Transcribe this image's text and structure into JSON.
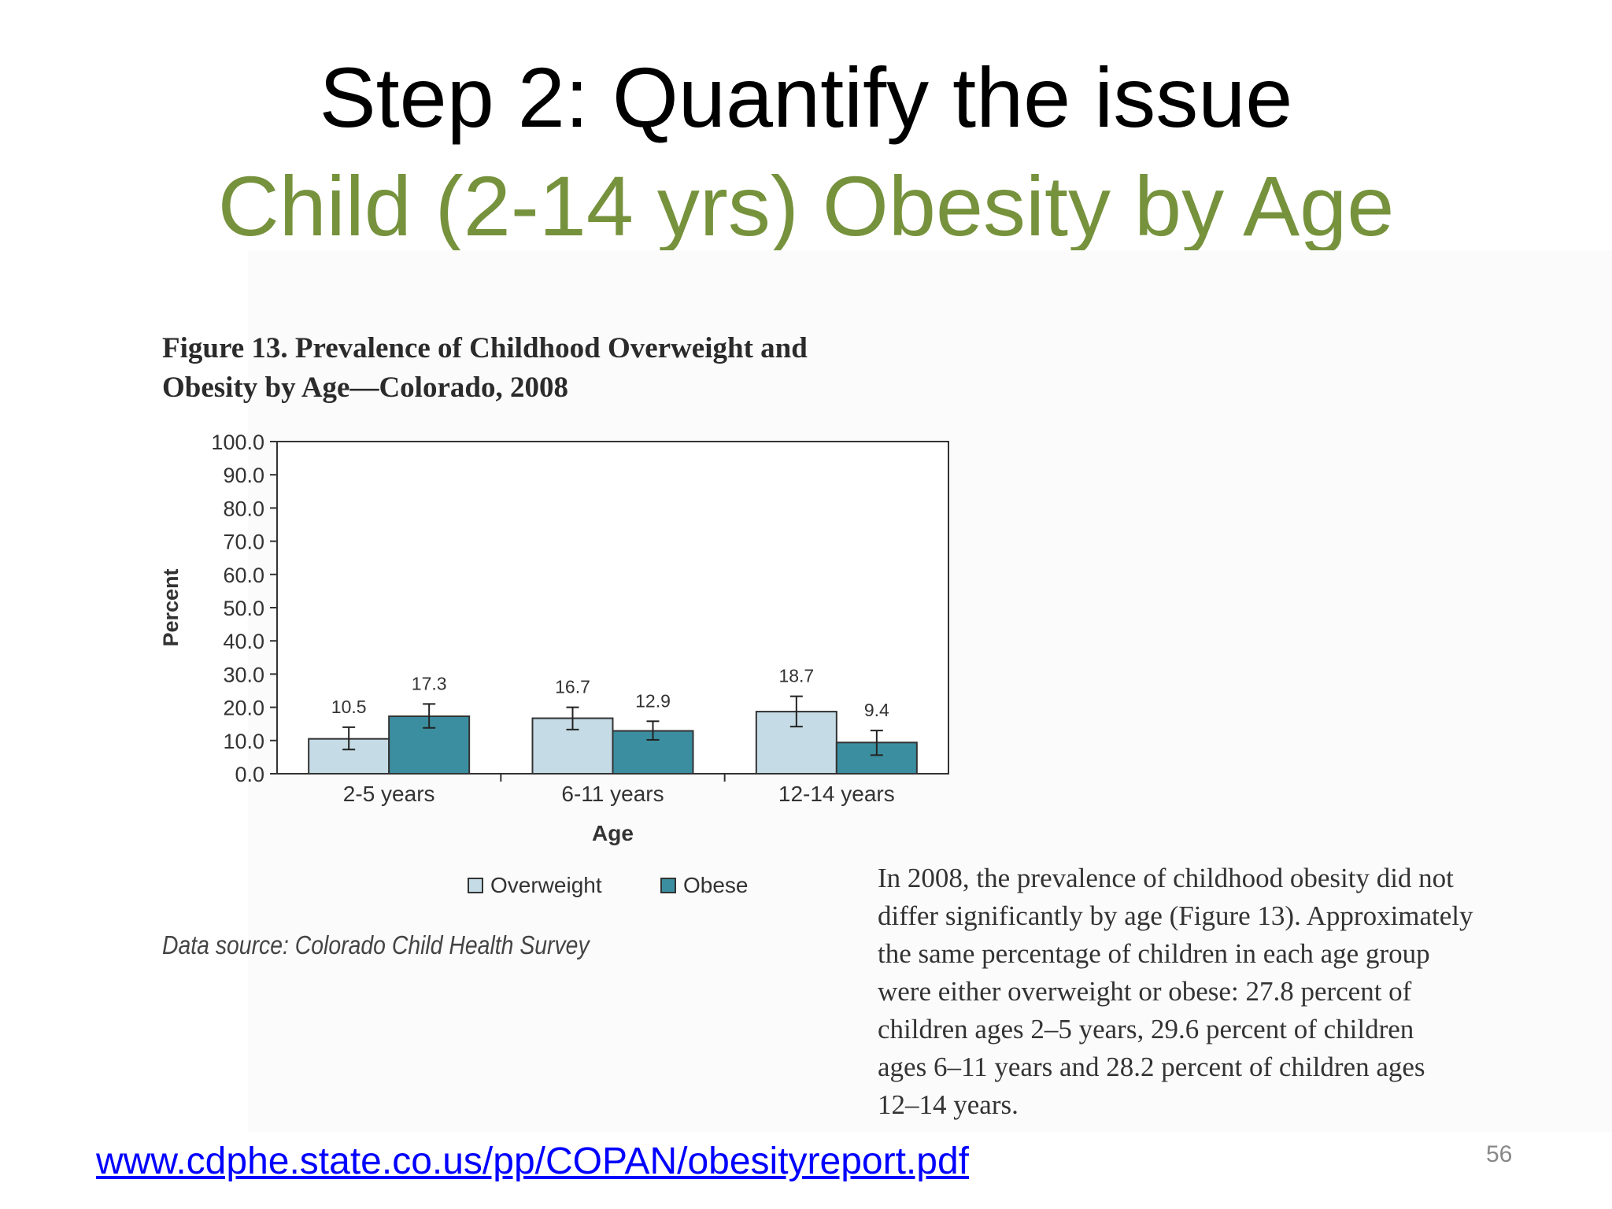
{
  "slide": {
    "title": "Step 2: Quantify the issue",
    "subtitle": "Child (2-14 yrs) Obesity by Age",
    "subtitle_color": "#76923c",
    "link_text": "www.cdphe.state.co.us/pp/COPAN/obesityreport.pdf",
    "link_color": "#0000ff",
    "page_number": "56"
  },
  "figure": {
    "caption_line1": "Figure 13. Prevalence of Childhood Overweight and",
    "caption_line2": "Obesity by Age—Colorado, 2008",
    "data_source": "Data source: Colorado Child Health Survey"
  },
  "body_text": {
    "lines": [
      "In 2008, the prevalence of childhood obesity did not",
      "differ significantly by age (Figure 13). Approximately",
      "the same percentage of children in each age group",
      "were either overweight or obese: 27.8 percent of",
      "children ages 2–5 years, 29.6 percent of children",
      "ages 6–11 years and 28.2 percent of children ages",
      "12–14 years."
    ]
  },
  "chart_data": {
    "type": "bar",
    "categories": [
      "2-5 years",
      "6-11 years",
      "12-14 years"
    ],
    "series": [
      {
        "name": "Overweight",
        "values": [
          10.5,
          16.7,
          18.7
        ],
        "error_low": [
          7.3,
          13.3,
          14.2
        ],
        "error_high": [
          14.0,
          20.0,
          23.3
        ],
        "color": "#c5dbe6"
      },
      {
        "name": "Obese",
        "values": [
          17.3,
          12.9,
          9.4
        ],
        "error_low": [
          13.8,
          10.2,
          5.6
        ],
        "error_high": [
          21.0,
          15.8,
          13.0
        ],
        "color": "#3b8ea0"
      }
    ],
    "xlabel": "Age",
    "ylabel": "Percent",
    "ylim": [
      0,
      100
    ],
    "yticks": [
      "0.0",
      "10.0",
      "20.0",
      "30.0",
      "40.0",
      "50.0",
      "60.0",
      "70.0",
      "80.0",
      "90.0",
      "100.0"
    ],
    "grid": false,
    "legend": "bottom"
  }
}
